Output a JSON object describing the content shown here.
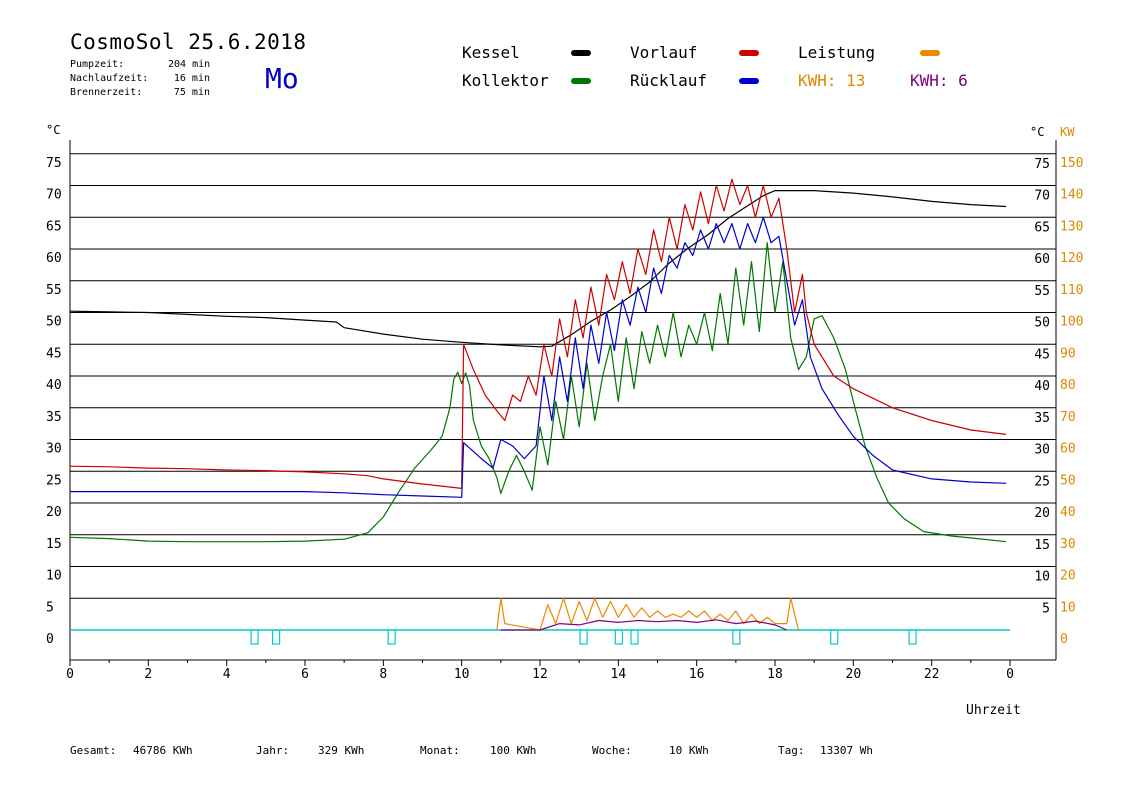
{
  "header": {
    "title": "CosmoSol 25.6.2018",
    "day": "Mo",
    "stats": [
      {
        "label": "Pumpzeit:",
        "value": "204 min"
      },
      {
        "label": "Nachlaufzeit:",
        "value": "16 min"
      },
      {
        "label": "Brennerzeit:",
        "value": "75 min"
      }
    ]
  },
  "legend": {
    "kessel": "Kessel",
    "kollektor": "Kollektor",
    "vorlauf": "Vorlauf",
    "ruecklauf": "Rücklauf",
    "leistung": "Leistung",
    "kwh1": "KWH: 13",
    "kwh2": "KWH: 6"
  },
  "colors": {
    "kessel": "#000000",
    "kollektor": "#007700",
    "vorlauf": "#cc0000",
    "ruecklauf": "#0000cc",
    "leistung": "#ee8800",
    "kwh2": "#800080",
    "pump": "#00cccc",
    "kw_axis": "#dd8800"
  },
  "footer": {
    "gesamt_label": "Gesamt:",
    "gesamt_value": "46786 KWh",
    "jahr_label": "Jahr:",
    "jahr_value": "329 KWh",
    "monat_label": "Monat:",
    "monat_value": "100 KWh",
    "woche_label": "Woche:",
    "woche_value": "10 KWh",
    "tag_label": "Tag:",
    "tag_value": "13307 Wh"
  },
  "chart_data": {
    "type": "line",
    "xlabel": "Uhrzeit",
    "ylabel_left": "°C",
    "ylabel_right_1": "°C",
    "ylabel_right_2": "KW",
    "x_ticks": [
      "0",
      "2",
      "4",
      "6",
      "8",
      "10",
      "12",
      "14",
      "16",
      "18",
      "20",
      "22",
      "0"
    ],
    "y_left_ticks": [
      "0",
      "5",
      "10",
      "15",
      "20",
      "25",
      "30",
      "35",
      "40",
      "45",
      "50",
      "55",
      "60",
      "65",
      "70",
      "75"
    ],
    "y_right_c_ticks": [
      "5",
      "10",
      "15",
      "20",
      "25",
      "30",
      "35",
      "40",
      "45",
      "50",
      "55",
      "60",
      "65",
      "70",
      "75"
    ],
    "y_right_kw_ticks": [
      "0",
      "10",
      "20",
      "30",
      "40",
      "50",
      "60",
      "70",
      "80",
      "90",
      "100",
      "110",
      "120",
      "130",
      "140",
      "150"
    ],
    "xlim": [
      0,
      24
    ],
    "ylim": [
      0,
      75
    ],
    "grid": true,
    "series": [
      {
        "name": "Kessel",
        "color_key": "kessel",
        "points": [
          [
            0,
            50.2
          ],
          [
            1,
            50.1
          ],
          [
            2,
            50
          ],
          [
            3,
            49.7
          ],
          [
            4,
            49.4
          ],
          [
            5,
            49.2
          ],
          [
            6,
            48.8
          ],
          [
            6.8,
            48.5
          ],
          [
            7,
            47.6
          ],
          [
            8,
            46.6
          ],
          [
            9,
            45.8
          ],
          [
            10,
            45.3
          ],
          [
            11,
            44.9
          ],
          [
            12,
            44.6
          ],
          [
            12.3,
            44.7
          ],
          [
            12.8,
            46.5
          ],
          [
            13.3,
            48.6
          ],
          [
            13.8,
            50.4
          ],
          [
            14.3,
            52.5
          ],
          [
            14.8,
            54.8
          ],
          [
            15.3,
            57.8
          ],
          [
            15.8,
            60.2
          ],
          [
            16.3,
            62.3
          ],
          [
            16.8,
            64.8
          ],
          [
            17.3,
            66.8
          ],
          [
            17.7,
            68.4
          ],
          [
            18,
            69.2
          ],
          [
            19,
            69.2
          ],
          [
            20,
            68.8
          ],
          [
            21,
            68.2
          ],
          [
            22,
            67.5
          ],
          [
            23,
            67
          ],
          [
            23.9,
            66.7
          ]
        ]
      },
      {
        "name": "Kollektor",
        "color_key": "kollektor",
        "points": [
          [
            0,
            14.6
          ],
          [
            1,
            14.4
          ],
          [
            2,
            14
          ],
          [
            3,
            13.9
          ],
          [
            4,
            13.9
          ],
          [
            5,
            13.9
          ],
          [
            6,
            14
          ],
          [
            7,
            14.3
          ],
          [
            7.6,
            15.3
          ],
          [
            8,
            17.8
          ],
          [
            8.4,
            21.8
          ],
          [
            8.8,
            25.5
          ],
          [
            9.2,
            28.2
          ],
          [
            9.5,
            30.5
          ],
          [
            9.7,
            35
          ],
          [
            9.8,
            39.5
          ],
          [
            9.9,
            40.6
          ],
          [
            10,
            38.8
          ],
          [
            10.1,
            40.5
          ],
          [
            10.2,
            38.5
          ],
          [
            10.3,
            33
          ],
          [
            10.5,
            29
          ],
          [
            10.7,
            27
          ],
          [
            10.9,
            24
          ],
          [
            11,
            21.5
          ],
          [
            11.2,
            25
          ],
          [
            11.4,
            27.5
          ],
          [
            11.6,
            25
          ],
          [
            11.8,
            22
          ],
          [
            12,
            32
          ],
          [
            12.2,
            26
          ],
          [
            12.4,
            36
          ],
          [
            12.6,
            30
          ],
          [
            12.8,
            40
          ],
          [
            13,
            32
          ],
          [
            13.2,
            42
          ],
          [
            13.4,
            33
          ],
          [
            13.6,
            40
          ],
          [
            13.8,
            45
          ],
          [
            14,
            36
          ],
          [
            14.2,
            46
          ],
          [
            14.4,
            38
          ],
          [
            14.6,
            47
          ],
          [
            14.8,
            42
          ],
          [
            15,
            48
          ],
          [
            15.2,
            43
          ],
          [
            15.4,
            50
          ],
          [
            15.6,
            43
          ],
          [
            15.8,
            48
          ],
          [
            16,
            45
          ],
          [
            16.2,
            50
          ],
          [
            16.4,
            44
          ],
          [
            16.6,
            53
          ],
          [
            16.8,
            45
          ],
          [
            17,
            57
          ],
          [
            17.2,
            48
          ],
          [
            17.4,
            58
          ],
          [
            17.6,
            47
          ],
          [
            17.8,
            61
          ],
          [
            18,
            50
          ],
          [
            18.2,
            58
          ],
          [
            18.4,
            46
          ],
          [
            18.6,
            41
          ],
          [
            18.8,
            43
          ],
          [
            19,
            49
          ],
          [
            19.2,
            49.5
          ],
          [
            19.5,
            46
          ],
          [
            19.8,
            41
          ],
          [
            20,
            36
          ],
          [
            20.3,
            29
          ],
          [
            20.6,
            24
          ],
          [
            20.9,
            20
          ],
          [
            21.3,
            17.5
          ],
          [
            21.8,
            15.5
          ],
          [
            22.5,
            14.8
          ],
          [
            23,
            14.5
          ],
          [
            23.9,
            13.9
          ]
        ]
      },
      {
        "name": "Vorlauf",
        "color_key": "vorlauf",
        "points": [
          [
            0,
            25.8
          ],
          [
            1,
            25.7
          ],
          [
            2,
            25.5
          ],
          [
            3,
            25.4
          ],
          [
            4,
            25.2
          ],
          [
            5,
            25.1
          ],
          [
            6,
            24.9
          ],
          [
            7,
            24.6
          ],
          [
            7.6,
            24.3
          ],
          [
            8,
            23.8
          ],
          [
            9,
            23
          ],
          [
            10,
            22.3
          ],
          [
            10.05,
            45
          ],
          [
            10.3,
            41
          ],
          [
            10.6,
            37
          ],
          [
            10.9,
            34.5
          ],
          [
            11.1,
            33
          ],
          [
            11.3,
            37
          ],
          [
            11.5,
            36
          ],
          [
            11.7,
            40
          ],
          [
            11.9,
            37
          ],
          [
            12.1,
            45
          ],
          [
            12.3,
            40
          ],
          [
            12.5,
            49
          ],
          [
            12.7,
            43
          ],
          [
            12.9,
            52
          ],
          [
            13.1,
            46
          ],
          [
            13.3,
            54
          ],
          [
            13.5,
            48
          ],
          [
            13.7,
            56
          ],
          [
            13.9,
            52
          ],
          [
            14.1,
            58
          ],
          [
            14.3,
            53
          ],
          [
            14.5,
            60
          ],
          [
            14.7,
            56
          ],
          [
            14.9,
            63
          ],
          [
            15.1,
            58
          ],
          [
            15.3,
            65
          ],
          [
            15.5,
            60
          ],
          [
            15.7,
            67
          ],
          [
            15.9,
            63
          ],
          [
            16.1,
            69
          ],
          [
            16.3,
            64
          ],
          [
            16.5,
            70
          ],
          [
            16.7,
            66
          ],
          [
            16.9,
            71
          ],
          [
            17.1,
            67
          ],
          [
            17.3,
            70
          ],
          [
            17.5,
            65
          ],
          [
            17.7,
            70
          ],
          [
            17.9,
            65
          ],
          [
            18.1,
            68
          ],
          [
            18.3,
            60
          ],
          [
            18.5,
            50
          ],
          [
            18.7,
            56
          ],
          [
            18.8,
            50
          ],
          [
            19,
            45
          ],
          [
            19.5,
            40
          ],
          [
            20,
            38
          ],
          [
            21,
            35
          ],
          [
            22,
            33
          ],
          [
            23,
            31.5
          ],
          [
            23.9,
            30.8
          ]
        ]
      },
      {
        "name": "Rücklauf",
        "color_key": "ruecklauf",
        "points": [
          [
            0,
            21.8
          ],
          [
            1,
            21.8
          ],
          [
            2,
            21.8
          ],
          [
            3,
            21.8
          ],
          [
            4,
            21.8
          ],
          [
            5,
            21.8
          ],
          [
            6,
            21.8
          ],
          [
            7,
            21.6
          ],
          [
            8,
            21.3
          ],
          [
            9,
            21.1
          ],
          [
            10,
            20.9
          ],
          [
            10.05,
            29.5
          ],
          [
            10.5,
            27
          ],
          [
            10.8,
            25.5
          ],
          [
            11,
            30
          ],
          [
            11.3,
            29
          ],
          [
            11.6,
            27
          ],
          [
            11.9,
            29
          ],
          [
            12.1,
            40
          ],
          [
            12.3,
            33
          ],
          [
            12.5,
            43
          ],
          [
            12.7,
            36
          ],
          [
            12.9,
            46
          ],
          [
            13.1,
            38
          ],
          [
            13.3,
            48
          ],
          [
            13.5,
            42
          ],
          [
            13.7,
            50
          ],
          [
            13.9,
            44
          ],
          [
            14.1,
            52
          ],
          [
            14.3,
            48
          ],
          [
            14.5,
            54
          ],
          [
            14.7,
            50
          ],
          [
            14.9,
            57
          ],
          [
            15.1,
            53
          ],
          [
            15.3,
            59
          ],
          [
            15.5,
            57
          ],
          [
            15.7,
            61
          ],
          [
            15.9,
            59
          ],
          [
            16.1,
            63
          ],
          [
            16.3,
            60
          ],
          [
            16.5,
            64
          ],
          [
            16.7,
            61
          ],
          [
            16.9,
            64
          ],
          [
            17.1,
            60
          ],
          [
            17.3,
            64
          ],
          [
            17.5,
            61
          ],
          [
            17.7,
            65
          ],
          [
            17.9,
            61
          ],
          [
            18.1,
            62
          ],
          [
            18.3,
            55
          ],
          [
            18.5,
            48
          ],
          [
            18.7,
            52
          ],
          [
            18.9,
            43
          ],
          [
            19.2,
            38
          ],
          [
            19.6,
            34
          ],
          [
            20,
            30.5
          ],
          [
            20.5,
            27.5
          ],
          [
            21,
            25.2
          ],
          [
            22,
            23.8
          ],
          [
            23,
            23.3
          ],
          [
            23.9,
            23.1
          ]
        ]
      },
      {
        "name": "Leistung",
        "color_key": "leistung",
        "points": [
          [
            10.9,
            0
          ],
          [
            11,
            5
          ],
          [
            11.1,
            1
          ],
          [
            12,
            0
          ],
          [
            12.2,
            4
          ],
          [
            12.4,
            1
          ],
          [
            12.6,
            5
          ],
          [
            12.8,
            1
          ],
          [
            13,
            4.5
          ],
          [
            13.2,
            1.5
          ],
          [
            13.4,
            5
          ],
          [
            13.6,
            2
          ],
          [
            13.8,
            4.5
          ],
          [
            14,
            2
          ],
          [
            14.2,
            4
          ],
          [
            14.4,
            2
          ],
          [
            14.6,
            3.5
          ],
          [
            14.8,
            2
          ],
          [
            15,
            3
          ],
          [
            15.2,
            2
          ],
          [
            15.4,
            2.5
          ],
          [
            15.6,
            2
          ],
          [
            15.8,
            3
          ],
          [
            16,
            2
          ],
          [
            16.2,
            3
          ],
          [
            16.4,
            1.5
          ],
          [
            16.6,
            2.5
          ],
          [
            16.8,
            1.5
          ],
          [
            17,
            3
          ],
          [
            17.2,
            1
          ],
          [
            17.4,
            2.5
          ],
          [
            17.6,
            1
          ],
          [
            17.8,
            2
          ],
          [
            18,
            1
          ],
          [
            18.3,
            1
          ],
          [
            18.4,
            5
          ],
          [
            18.6,
            0
          ]
        ]
      },
      {
        "name": "KWH: 6",
        "color_key": "kwh2",
        "points": [
          [
            11,
            0
          ],
          [
            12,
            0
          ],
          [
            12.5,
            1
          ],
          [
            13,
            0.8
          ],
          [
            13.5,
            1.5
          ],
          [
            14,
            1.2
          ],
          [
            14.5,
            1.5
          ],
          [
            15,
            1.3
          ],
          [
            15.5,
            1.5
          ],
          [
            16,
            1.2
          ],
          [
            16.5,
            1.6
          ],
          [
            17,
            1
          ],
          [
            17.5,
            1.4
          ],
          [
            18,
            0.8
          ],
          [
            18.3,
            0
          ]
        ]
      }
    ],
    "pump_marks": [
      4.7,
      5.25,
      8.2,
      13.1,
      14.0,
      14.4,
      17.0,
      19.5,
      21.5
    ]
  }
}
